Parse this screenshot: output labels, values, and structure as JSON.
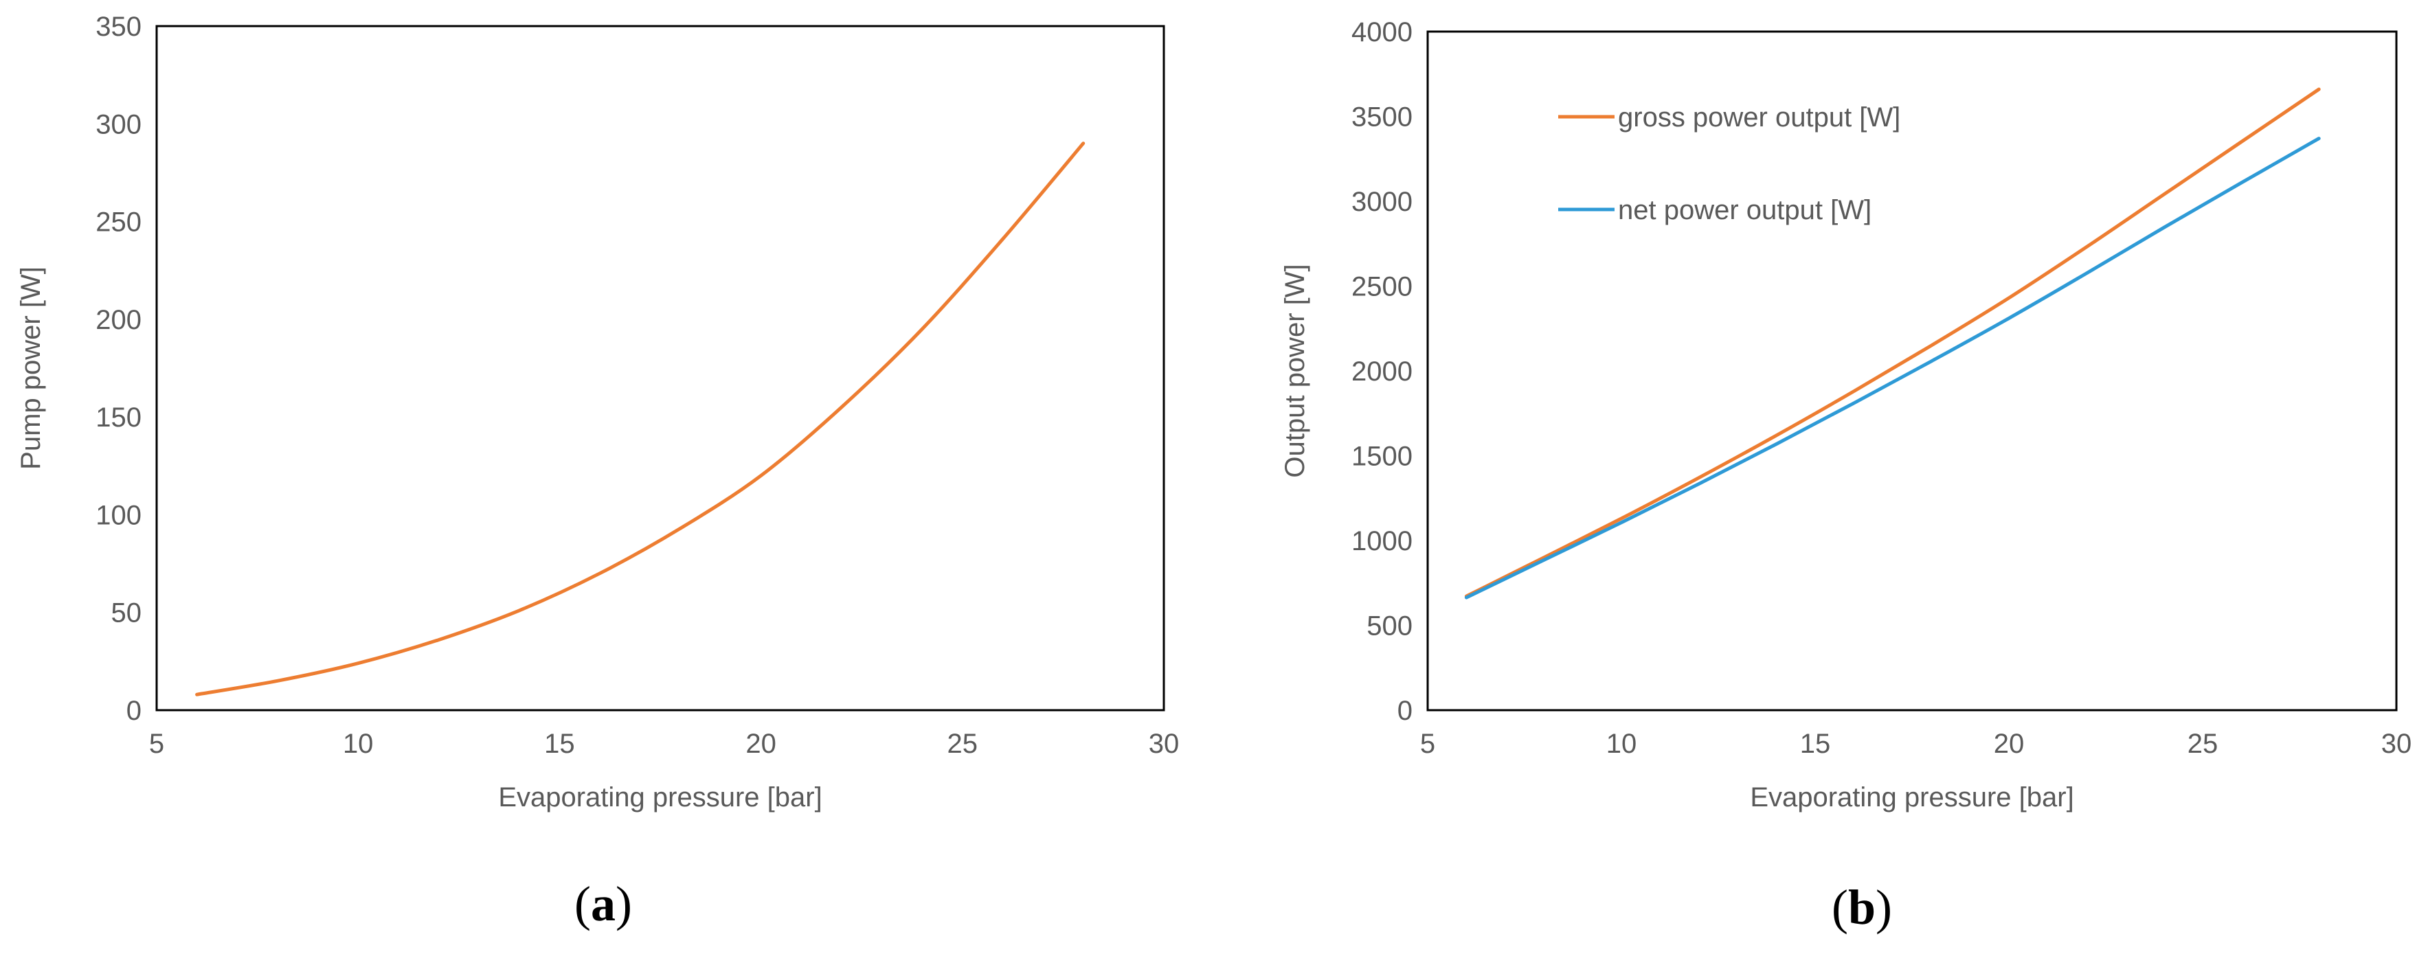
{
  "chart_data": [
    {
      "type": "line",
      "caption_open": "(",
      "caption_letter": "a",
      "caption_close": ")",
      "xlabel": "Evaporating pressure [bar]",
      "ylabel": "Pump power [W]",
      "xlim": [
        5,
        30
      ],
      "ylim": [
        0,
        350
      ],
      "xticks": [
        5,
        10,
        15,
        20,
        25,
        30
      ],
      "yticks": [
        0,
        50,
        100,
        150,
        200,
        250,
        300,
        350
      ],
      "grid": false,
      "legend": "none",
      "series": [
        {
          "color": "#ED7D31",
          "x": [
            6,
            8,
            10,
            12,
            14,
            16,
            18,
            20,
            22,
            24,
            26,
            28
          ],
          "y": [
            8,
            15,
            24,
            36,
            51,
            70,
            93,
            120,
            155,
            195,
            241,
            290
          ]
        }
      ]
    },
    {
      "type": "line",
      "caption_open": "(",
      "caption_letter": "b",
      "caption_close": ")",
      "xlabel": "Evaporating pressure [bar]",
      "ylabel": "Output power [W]",
      "xlim": [
        5,
        30
      ],
      "ylim": [
        0,
        4000
      ],
      "xticks": [
        5,
        10,
        15,
        20,
        25,
        30
      ],
      "yticks": [
        0,
        500,
        1000,
        1500,
        2000,
        2500,
        3000,
        3500,
        4000
      ],
      "grid": false,
      "legend": "top-left",
      "series": [
        {
          "name": "gross power output [W]",
          "color": "#ED7D31",
          "x": [
            6,
            8,
            10,
            12,
            14,
            16,
            18,
            20,
            22,
            24,
            26,
            28
          ],
          "y": [
            672,
            900,
            1130,
            1370,
            1620,
            1880,
            2150,
            2430,
            2730,
            3040,
            3350,
            3660
          ]
        },
        {
          "name": "net power output [W]",
          "color": "#2E9AD6",
          "x": [
            6,
            8,
            10,
            12,
            14,
            16,
            18,
            20,
            22,
            24,
            26,
            28
          ],
          "y": [
            664,
            885,
            1106,
            1334,
            1569,
            1810,
            2057,
            2310,
            2575,
            2845,
            3109,
            3370
          ]
        }
      ]
    }
  ]
}
